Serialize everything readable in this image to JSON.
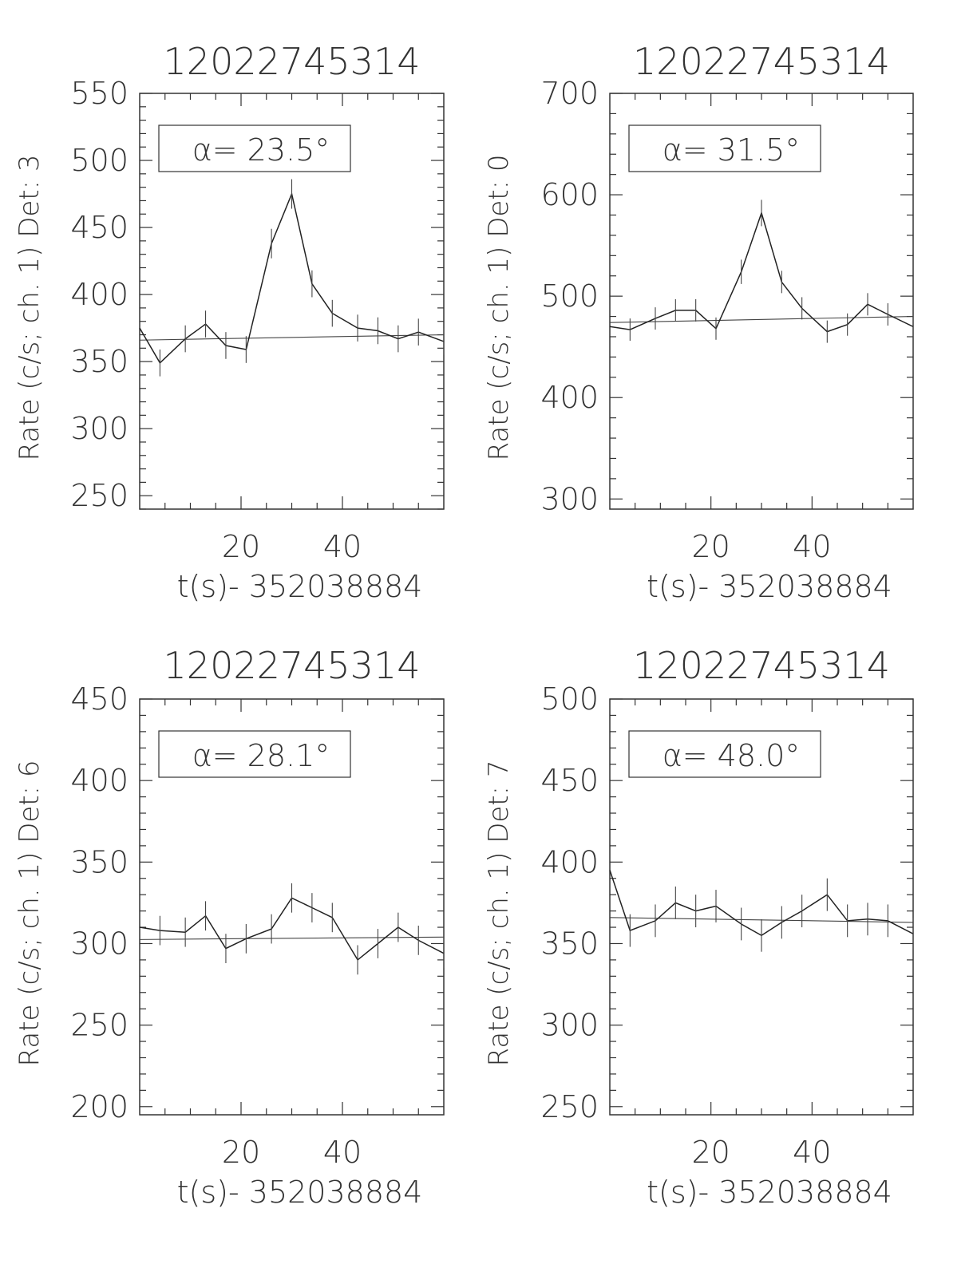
{
  "chart_data": [
    {
      "type": "line",
      "title": "12022745314",
      "xlabel": "t(s)- 352038884",
      "ylabel": "Rate (c/s; ch. 1) Det: 3",
      "annotation": "α= 23.5°",
      "xlim": [
        0,
        60
      ],
      "ylim": [
        240,
        550
      ],
      "x_ticks": [
        20,
        40
      ],
      "y_ticks": [
        250,
        300,
        350,
        400,
        450,
        500,
        550
      ],
      "x": [
        0,
        4,
        9,
        13,
        17,
        21,
        26,
        30,
        34,
        38,
        43,
        47,
        51,
        55,
        60
      ],
      "values": [
        375,
        349,
        367,
        378,
        362,
        359,
        438,
        475,
        408,
        386,
        375,
        373,
        367,
        372,
        365
      ],
      "errors": [
        10,
        10,
        10,
        10,
        10,
        10,
        11,
        11,
        10,
        10,
        10,
        10,
        10,
        10,
        10
      ],
      "fit": {
        "x": [
          0,
          60
        ],
        "y": [
          366,
          370
        ]
      }
    },
    {
      "type": "line",
      "title": "12022745314",
      "xlabel": "t(s)- 352038884",
      "ylabel": "Rate (c/s; ch. 1) Det: 0",
      "annotation": "α= 31.5°",
      "xlim": [
        0,
        60
      ],
      "ylim": [
        290,
        700
      ],
      "x_ticks": [
        20,
        40
      ],
      "y_ticks": [
        300,
        400,
        500,
        600,
        700
      ],
      "x": [
        0,
        4,
        9,
        13,
        17,
        21,
        26,
        30,
        34,
        38,
        43,
        47,
        51,
        55,
        60
      ],
      "values": [
        470,
        467,
        478,
        486,
        486,
        468,
        524,
        582,
        514,
        488,
        465,
        472,
        492,
        482,
        470
      ],
      "errors": [
        11,
        11,
        11,
        11,
        11,
        11,
        12,
        13,
        11,
        11,
        11,
        11,
        11,
        11,
        11
      ],
      "fit": {
        "x": [
          0,
          60
        ],
        "y": [
          474,
          480
        ]
      }
    },
    {
      "type": "line",
      "title": "12022745314",
      "xlabel": "t(s)- 352038884",
      "ylabel": "Rate (c/s; ch. 1) Det: 6",
      "annotation": "α= 28.1°",
      "xlim": [
        0,
        60
      ],
      "ylim": [
        195,
        450
      ],
      "x_ticks": [
        20,
        40
      ],
      "y_ticks": [
        200,
        250,
        300,
        350,
        400,
        450
      ],
      "x": [
        0,
        4,
        9,
        13,
        17,
        21,
        26,
        30,
        34,
        38,
        43,
        47,
        51,
        55,
        60
      ],
      "values": [
        310,
        308,
        307,
        317,
        297,
        303,
        309,
        328,
        322,
        316,
        290,
        300,
        310,
        302,
        294
      ],
      "errors": [
        9,
        9,
        9,
        9,
        9,
        9,
        9,
        9,
        9,
        9,
        9,
        9,
        9,
        9,
        9
      ],
      "fit": {
        "x": [
          0,
          60
        ],
        "y": [
          302.5,
          304
        ]
      }
    },
    {
      "type": "line",
      "title": "12022745314",
      "xlabel": "t(s)- 352038884",
      "ylabel": "Rate (c/s; ch. 1) Det: 7",
      "annotation": "α= 48.0°",
      "xlim": [
        0,
        60
      ],
      "ylim": [
        245,
        500
      ],
      "x_ticks": [
        20,
        40
      ],
      "y_ticks": [
        250,
        300,
        350,
        400,
        450,
        500
      ],
      "x": [
        0,
        4,
        9,
        13,
        17,
        21,
        26,
        30,
        34,
        38,
        43,
        47,
        51,
        55,
        60
      ],
      "values": [
        395,
        358,
        364,
        375,
        370,
        373,
        362,
        355,
        363,
        370,
        380,
        364,
        365,
        364,
        356
      ],
      "errors": [
        10,
        10,
        10,
        10,
        10,
        10,
        10,
        10,
        10,
        10,
        10,
        10,
        10,
        10,
        10
      ],
      "fit": {
        "x": [
          0,
          60
        ],
        "y": [
          366,
          363
        ]
      }
    }
  ]
}
